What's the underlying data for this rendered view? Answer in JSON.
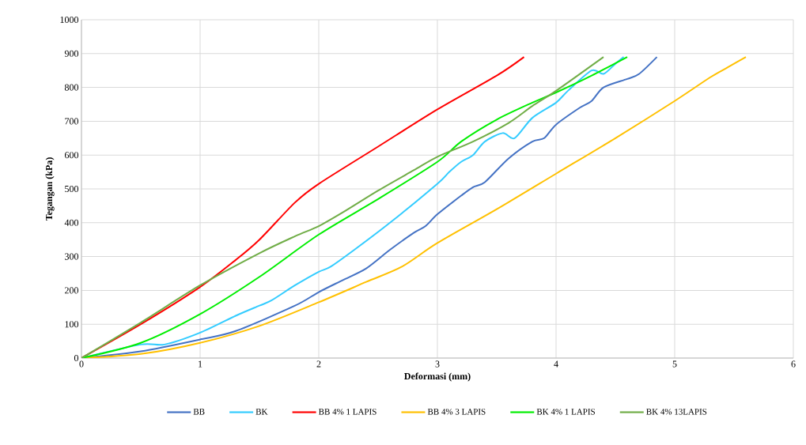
{
  "chart_data": {
    "type": "line",
    "xlabel": "Deformasi (mm)",
    "ylabel": "Tegangan (kPa)",
    "xlim": [
      0,
      6
    ],
    "ylim": [
      0,
      1000
    ],
    "xticks": [
      0,
      1,
      2,
      3,
      4,
      5,
      6
    ],
    "yticks": [
      0,
      100,
      200,
      300,
      400,
      500,
      600,
      700,
      800,
      900,
      1000
    ],
    "grid": true,
    "legend": "bottom",
    "series": [
      {
        "name": "BB",
        "color": "#4472c4",
        "x": [
          0,
          0.5,
          1,
          1.3,
          1.8,
          2,
          2.2,
          2.4,
          2.6,
          2.8,
          2.9,
          3,
          3.2,
          3.3,
          3.4,
          3.6,
          3.8,
          3.9,
          4,
          4.2,
          4.3,
          4.4,
          4.6,
          4.7,
          4.85
        ],
        "values": [
          0,
          20,
          55,
          80,
          155,
          195,
          230,
          265,
          320,
          370,
          390,
          425,
          480,
          505,
          520,
          590,
          640,
          650,
          690,
          740,
          760,
          800,
          825,
          840,
          890
        ]
      },
      {
        "name": "BK",
        "color": "#33ccff",
        "x": [
          0,
          0.5,
          0.7,
          1,
          1.3,
          1.5,
          1.6,
          1.8,
          2,
          2.1,
          2.3,
          2.6,
          3,
          3.1,
          3.2,
          3.3,
          3.4,
          3.55,
          3.65,
          3.8,
          4,
          4.1,
          4.3,
          4.4,
          4.5,
          4.57
        ],
        "values": [
          0,
          40,
          40,
          75,
          125,
          155,
          170,
          215,
          255,
          270,
          320,
          400,
          515,
          550,
          580,
          600,
          640,
          665,
          650,
          710,
          755,
          790,
          850,
          840,
          870,
          890
        ]
      },
      {
        "name": "BB 4% 1 LAPIS",
        "color": "#ff0000",
        "x": [
          0,
          0.5,
          1,
          1.3,
          1.5,
          1.8,
          2,
          2.5,
          3,
          3.5,
          3.73
        ],
        "values": [
          0,
          100,
          210,
          290,
          350,
          460,
          515,
          625,
          735,
          835,
          890
        ]
      },
      {
        "name": "BB 4% 3 LAPIS",
        "color": "#ffc000",
        "x": [
          0,
          0.5,
          1,
          1.5,
          2,
          2.4,
          2.7,
          3,
          3.5,
          4,
          4.5,
          5,
          5.3,
          5.45,
          5.6
        ],
        "values": [
          0,
          12,
          45,
          95,
          165,
          225,
          270,
          340,
          440,
          545,
          650,
          760,
          830,
          860,
          890
        ]
      },
      {
        "name": "BK 4% 1 LAPIS",
        "color": "#00ee00",
        "x": [
          0,
          0.5,
          1,
          1.5,
          2,
          2.5,
          3,
          3.2,
          3.5,
          3.8,
          4,
          4.3,
          4.6
        ],
        "values": [
          0,
          45,
          130,
          240,
          365,
          470,
          580,
          640,
          705,
          755,
          785,
          835,
          890
        ]
      },
      {
        "name": "BK 4% 13LAPIS",
        "color": "#70ad47",
        "x": [
          0,
          0.5,
          1,
          1.5,
          1.8,
          2,
          2.2,
          2.5,
          2.8,
          3,
          3.3,
          3.6,
          3.8,
          4,
          4.4
        ],
        "values": [
          0,
          105,
          215,
          310,
          360,
          390,
          430,
          495,
          555,
          595,
          640,
          695,
          745,
          790,
          890
        ]
      }
    ]
  }
}
